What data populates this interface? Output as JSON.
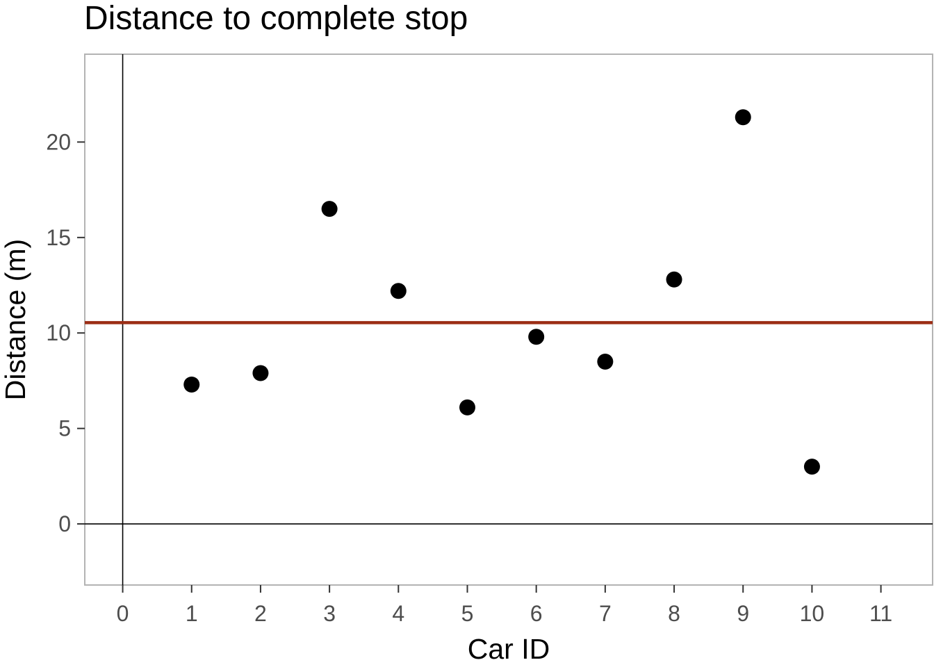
{
  "chart_data": {
    "type": "scatter",
    "title": "Distance to complete stop",
    "xlabel": "Car ID",
    "ylabel": "Distance (m)",
    "x": [
      1,
      2,
      3,
      4,
      5,
      6,
      7,
      8,
      9,
      10
    ],
    "y": [
      7.3,
      7.9,
      16.5,
      12.2,
      6.1,
      9.8,
      8.5,
      12.8,
      21.3,
      3.0
    ],
    "xlim": [
      -0.55,
      11.75
    ],
    "ylim": [
      -3.2,
      24.6
    ],
    "x_ticks": [
      0,
      1,
      2,
      3,
      4,
      5,
      6,
      7,
      8,
      9,
      10,
      11
    ],
    "y_ticks": [
      0,
      5,
      10,
      15,
      20
    ],
    "reference_lines": {
      "horizontal_mean": 10.54,
      "x_zero": 0,
      "y_zero": 0
    },
    "grid": false,
    "legend": "none",
    "colors": {
      "points": "#000000",
      "mean_line": "#9b2d14",
      "zero_lines": "#000000",
      "panel_border": "#b3b3b3",
      "tick_labels": "#4d4d4d"
    }
  }
}
